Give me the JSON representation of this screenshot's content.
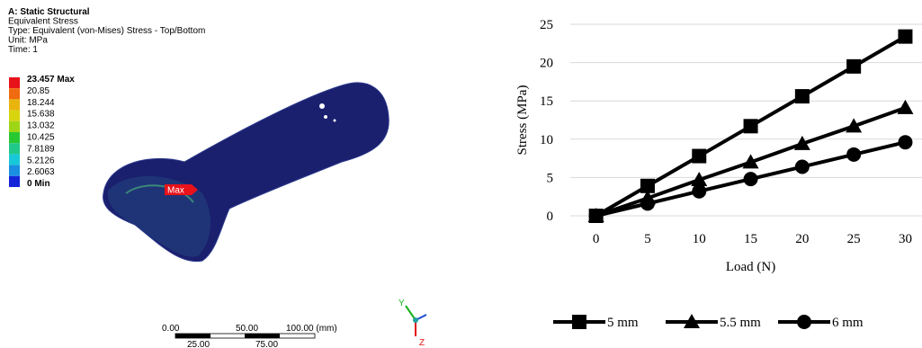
{
  "ansys_panel": {
    "header": [
      "A: Static Structural",
      "Equivalent Stress",
      "Type: Equivalent (von-Mises) Stress - Top/Bottom",
      "Unit: MPa",
      "Time: 1"
    ],
    "legend_labels": [
      "23.457 Max",
      "20.85",
      "18.244",
      "15.638",
      "13.032",
      "10.425",
      "7.8189",
      "5.2126",
      "2.6063",
      "0 Min"
    ],
    "legend_colors": [
      "#e8121a",
      "#f06a10",
      "#e9b40e",
      "#d8d40e",
      "#9ed616",
      "#28c832",
      "#20c88a",
      "#18c8d8",
      "#1a8ee0",
      "#1424d8"
    ],
    "max_probe": "Max",
    "scale_top": [
      "0.00",
      "50.00",
      "100.00 (mm)"
    ],
    "scale_bottom": [
      "25.00",
      "75.00"
    ],
    "triad": [
      "Y",
      "Z"
    ]
  },
  "chart_data": {
    "type": "line",
    "categories": [
      "0",
      "5",
      "10",
      "15",
      "20",
      "25",
      "30"
    ],
    "x_label": "Load (N)",
    "y_label": "Stress (MPa)",
    "ylim": [
      0,
      25
    ],
    "yticks": [
      0,
      5,
      10,
      15,
      20,
      25
    ],
    "grid": true,
    "series": [
      {
        "name": "5 mm",
        "color": "#000000",
        "marker": "square",
        "values": [
          0,
          3.9,
          7.8,
          11.7,
          15.6,
          19.5,
          23.4
        ]
      },
      {
        "name": "5.5 mm",
        "color": "#000000",
        "marker": "triangle",
        "values": [
          0,
          2.3,
          4.7,
          7.0,
          9.4,
          11.7,
          14.1
        ]
      },
      {
        "name": "6 mm",
        "color": "#000000",
        "marker": "circle",
        "values": [
          0,
          1.6,
          3.2,
          4.8,
          6.4,
          8.0,
          9.6
        ]
      }
    ]
  }
}
